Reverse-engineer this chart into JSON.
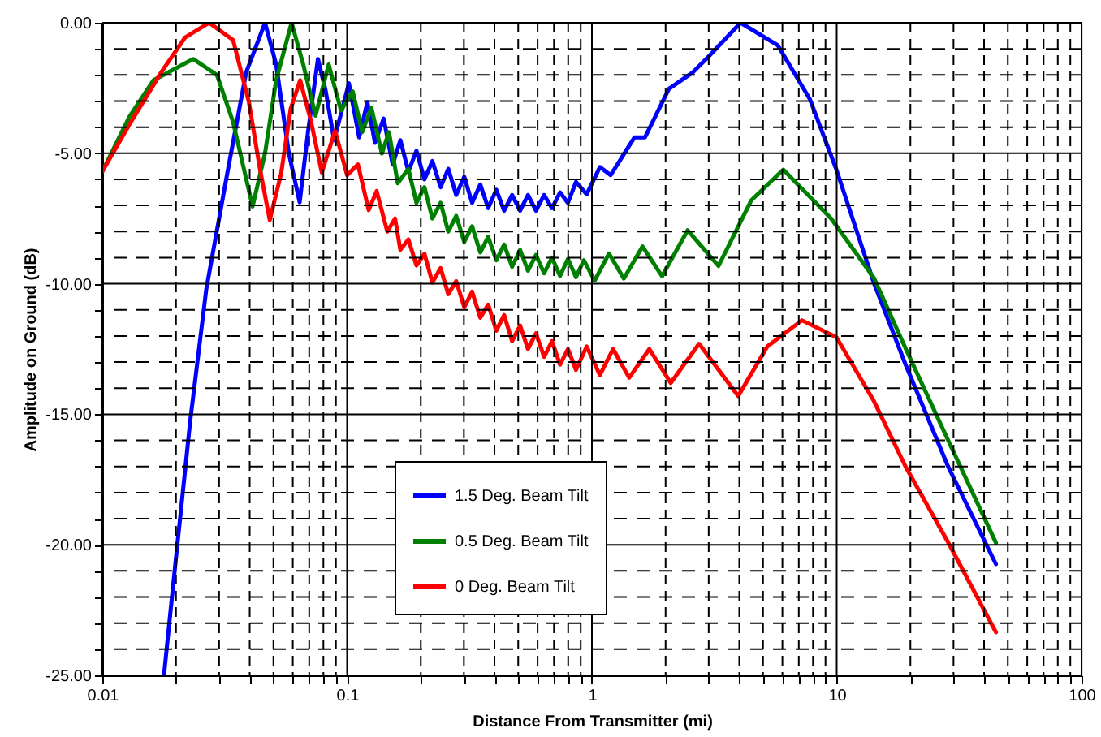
{
  "chart_data": {
    "type": "line",
    "xlabel": "Distance From Transmitter (mi)",
    "ylabel": "Amplitude on Ground (dB)",
    "log": "x",
    "xlim": [
      0.01,
      100
    ],
    "ylim": [
      -25,
      0
    ],
    "xticks": [
      0.01,
      {
        "value": 0.02,
        "label": null
      },
      {
        "value": 0.03,
        "label": null
      },
      {
        "value": 0.04,
        "label": null
      },
      {
        "value": 0.05,
        "label": null
      },
      {
        "value": 0.06,
        "label": null
      },
      {
        "value": 0.07,
        "label": null
      },
      {
        "value": 0.08,
        "label": null
      },
      {
        "value": 0.09,
        "label": null
      },
      0.1,
      {
        "value": 0.2,
        "label": null
      },
      {
        "value": 0.3,
        "label": null
      },
      {
        "value": 0.4,
        "label": null
      },
      {
        "value": 0.5,
        "label": null
      },
      {
        "value": 0.6,
        "label": null
      },
      {
        "value": 0.7,
        "label": null
      },
      {
        "value": 0.8,
        "label": null
      },
      {
        "value": 0.9,
        "label": null
      },
      1,
      {
        "value": 2,
        "label": null
      },
      {
        "value": 3,
        "label": null
      },
      {
        "value": 4,
        "label": null
      },
      {
        "value": 5,
        "label": null
      },
      {
        "value": 6,
        "label": null
      },
      {
        "value": 7,
        "label": null
      },
      {
        "value": 8,
        "label": null
      },
      {
        "value": 9,
        "label": null
      },
      10,
      {
        "value": 20,
        "label": null
      },
      {
        "value": 30,
        "label": null
      },
      {
        "value": 40,
        "label": null
      },
      {
        "value": 50,
        "label": null
      },
      {
        "value": 60,
        "label": null
      },
      {
        "value": 70,
        "label": null
      },
      {
        "value": 80,
        "label": null
      },
      {
        "value": 90,
        "label": null
      },
      100
    ],
    "yticks": [
      {
        "value": 0,
        "label": "0.00"
      },
      {
        "value": -1,
        "label": null
      },
      {
        "value": -2,
        "label": null
      },
      {
        "value": -3,
        "label": null
      },
      {
        "value": -4,
        "label": null
      },
      {
        "value": -5,
        "label": "-5.00"
      },
      {
        "value": -6,
        "label": null
      },
      {
        "value": -7,
        "label": null
      },
      {
        "value": -8,
        "label": null
      },
      {
        "value": -9,
        "label": null
      },
      {
        "value": -10,
        "label": "-10.00"
      },
      {
        "value": -11,
        "label": null
      },
      {
        "value": -12,
        "label": null
      },
      {
        "value": -13,
        "label": null
      },
      {
        "value": -14,
        "label": null
      },
      {
        "value": -15,
        "label": "-15.00"
      },
      {
        "value": -16,
        "label": null
      },
      {
        "value": -17,
        "label": null
      },
      {
        "value": -18,
        "label": null
      },
      {
        "value": -19,
        "label": null
      },
      {
        "value": -20,
        "label": "-20.00"
      },
      {
        "value": -21,
        "label": null
      },
      {
        "value": -22,
        "label": null
      },
      {
        "value": -23,
        "label": null
      },
      {
        "value": -24,
        "label": null
      },
      {
        "value": -25,
        "label": "-25.00"
      }
    ],
    "grid": true,
    "legend": "bottom",
    "marker": "none",
    "line_style": "solid",
    "series": [
      {
        "name": "1.5 Deg. Beam Tilt",
        "color": "#0000ff",
        "x": [
          0.01786,
          0.0202,
          0.0229,
          0.0266,
          0.0326,
          0.0387,
          0.0462,
          0.0513,
          0.0578,
          0.064,
          0.0692,
          0.076,
          0.0817,
          0.0885,
          0.1017,
          0.112,
          0.121,
          0.13,
          0.141,
          0.1535,
          0.165,
          0.178,
          0.192,
          0.207,
          0.223,
          0.241,
          0.259,
          0.279,
          0.301,
          0.324,
          0.35,
          0.377,
          0.407,
          0.438,
          0.472,
          0.509,
          0.548,
          0.591,
          0.638,
          0.687,
          0.741,
          0.798,
          0.861,
          0.952,
          1.078,
          1.192,
          1.493,
          1.648,
          2.064,
          2.585,
          3.0,
          4.05,
          5.75,
          7.78,
          9.97,
          14.2,
          19.1,
          28.5,
          44.7
        ],
        "values": [
          -25,
          -20.1,
          -15.2,
          -10.2,
          -5.63,
          -1.9,
          0,
          -1.6,
          -5.0,
          -6.88,
          -4.2,
          -1.39,
          -2.6,
          -4.5,
          -2.32,
          -4.39,
          -3.04,
          -4.6,
          -3.67,
          -5.43,
          -4.5,
          -5.7,
          -4.9,
          -6.0,
          -5.3,
          -6.3,
          -5.6,
          -6.6,
          -5.9,
          -6.9,
          -6.2,
          -7.1,
          -6.4,
          -7.2,
          -6.6,
          -7.2,
          -6.6,
          -7.2,
          -6.6,
          -7.1,
          -6.5,
          -6.9,
          -6.1,
          -6.57,
          -5.53,
          -5.84,
          -4.39,
          -4.39,
          -2.53,
          -1.9,
          -1.29,
          0,
          -0.87,
          -2.94,
          -5.63,
          -9.98,
          -13.09,
          -17.0,
          -20.74
        ]
      },
      {
        "name": "0.5 Deg. Beam Tilt",
        "color": "#008000",
        "x": [
          0.01,
          0.0129,
          0.0162,
          0.0235,
          0.0294,
          0.0342,
          0.0411,
          0.0462,
          0.0513,
          0.0593,
          0.0662,
          0.0743,
          0.0841,
          0.0944,
          0.1054,
          0.1153,
          0.1256,
          0.1387,
          0.1482,
          0.161,
          0.178,
          0.192,
          0.207,
          0.223,
          0.241,
          0.259,
          0.279,
          0.301,
          0.324,
          0.35,
          0.377,
          0.407,
          0.438,
          0.472,
          0.509,
          0.548,
          0.591,
          0.638,
          0.687,
          0.741,
          0.798,
          0.861,
          0.927,
          1.026,
          1.174,
          1.35,
          1.61,
          1.935,
          2.46,
          3.29,
          4.48,
          6.05,
          9.49,
          14.2,
          19.1,
          28.5,
          44.7
        ],
        "values": [
          -5.7,
          -3.6,
          -2.2,
          -1.39,
          -2.0,
          -3.8,
          -7.04,
          -5.0,
          -2.2,
          0,
          -1.6,
          -3.56,
          -1.6,
          -3.36,
          -2.63,
          -4.19,
          -3.25,
          -5.01,
          -4.19,
          -6.15,
          -5.6,
          -6.9,
          -6.3,
          -7.5,
          -6.9,
          -8.0,
          -7.4,
          -8.4,
          -7.8,
          -8.8,
          -8.2,
          -9.1,
          -8.5,
          -9.35,
          -8.7,
          -9.5,
          -8.9,
          -9.6,
          -9.0,
          -9.7,
          -9.05,
          -9.75,
          -9.1,
          -9.88,
          -8.84,
          -9.8,
          -8.57,
          -9.71,
          -7.95,
          -9.32,
          -6.8,
          -5.63,
          -7.5,
          -9.78,
          -12.47,
          -15.99,
          -19.92
        ]
      },
      {
        "name": "0 Deg. Beam Tilt",
        "color": "#ff0000",
        "x": [
          0.01,
          0.0129,
          0.0174,
          0.0218,
          0.0273,
          0.0342,
          0.0397,
          0.0441,
          0.0483,
          0.0537,
          0.0588,
          0.0643,
          0.0713,
          0.0788,
          0.0893,
          0.1,
          0.1107,
          0.1225,
          0.132,
          0.146,
          0.157,
          0.165,
          0.178,
          0.192,
          0.207,
          0.223,
          0.241,
          0.259,
          0.279,
          0.301,
          0.324,
          0.35,
          0.377,
          0.407,
          0.438,
          0.472,
          0.509,
          0.548,
          0.591,
          0.638,
          0.687,
          0.741,
          0.798,
          0.861,
          0.952,
          1.078,
          1.22,
          1.42,
          1.716,
          2.1,
          2.74,
          3.96,
          5.21,
          7.21,
          9.97,
          14.2,
          19.1,
          28.5,
          44.7
        ],
        "values": [
          -5.7,
          -3.9,
          -1.9,
          -0.56,
          0,
          -0.66,
          -3.04,
          -5.63,
          -7.56,
          -5.8,
          -3.3,
          -2.2,
          -3.8,
          -5.74,
          -4.14,
          -5.84,
          -5.43,
          -7.18,
          -6.45,
          -8.0,
          -7.5,
          -8.7,
          -8.3,
          -9.3,
          -8.85,
          -9.95,
          -9.4,
          -10.4,
          -9.9,
          -10.9,
          -10.3,
          -11.3,
          -10.8,
          -11.8,
          -11.2,
          -12.2,
          -11.6,
          -12.5,
          -11.9,
          -12.8,
          -12.2,
          -13.1,
          -12.5,
          -13.3,
          -12.4,
          -13.5,
          -12.5,
          -13.6,
          -12.5,
          -13.8,
          -12.3,
          -14.3,
          -12.4,
          -11.4,
          -12.05,
          -14.5,
          -17.0,
          -19.9,
          -23.35
        ]
      }
    ]
  }
}
